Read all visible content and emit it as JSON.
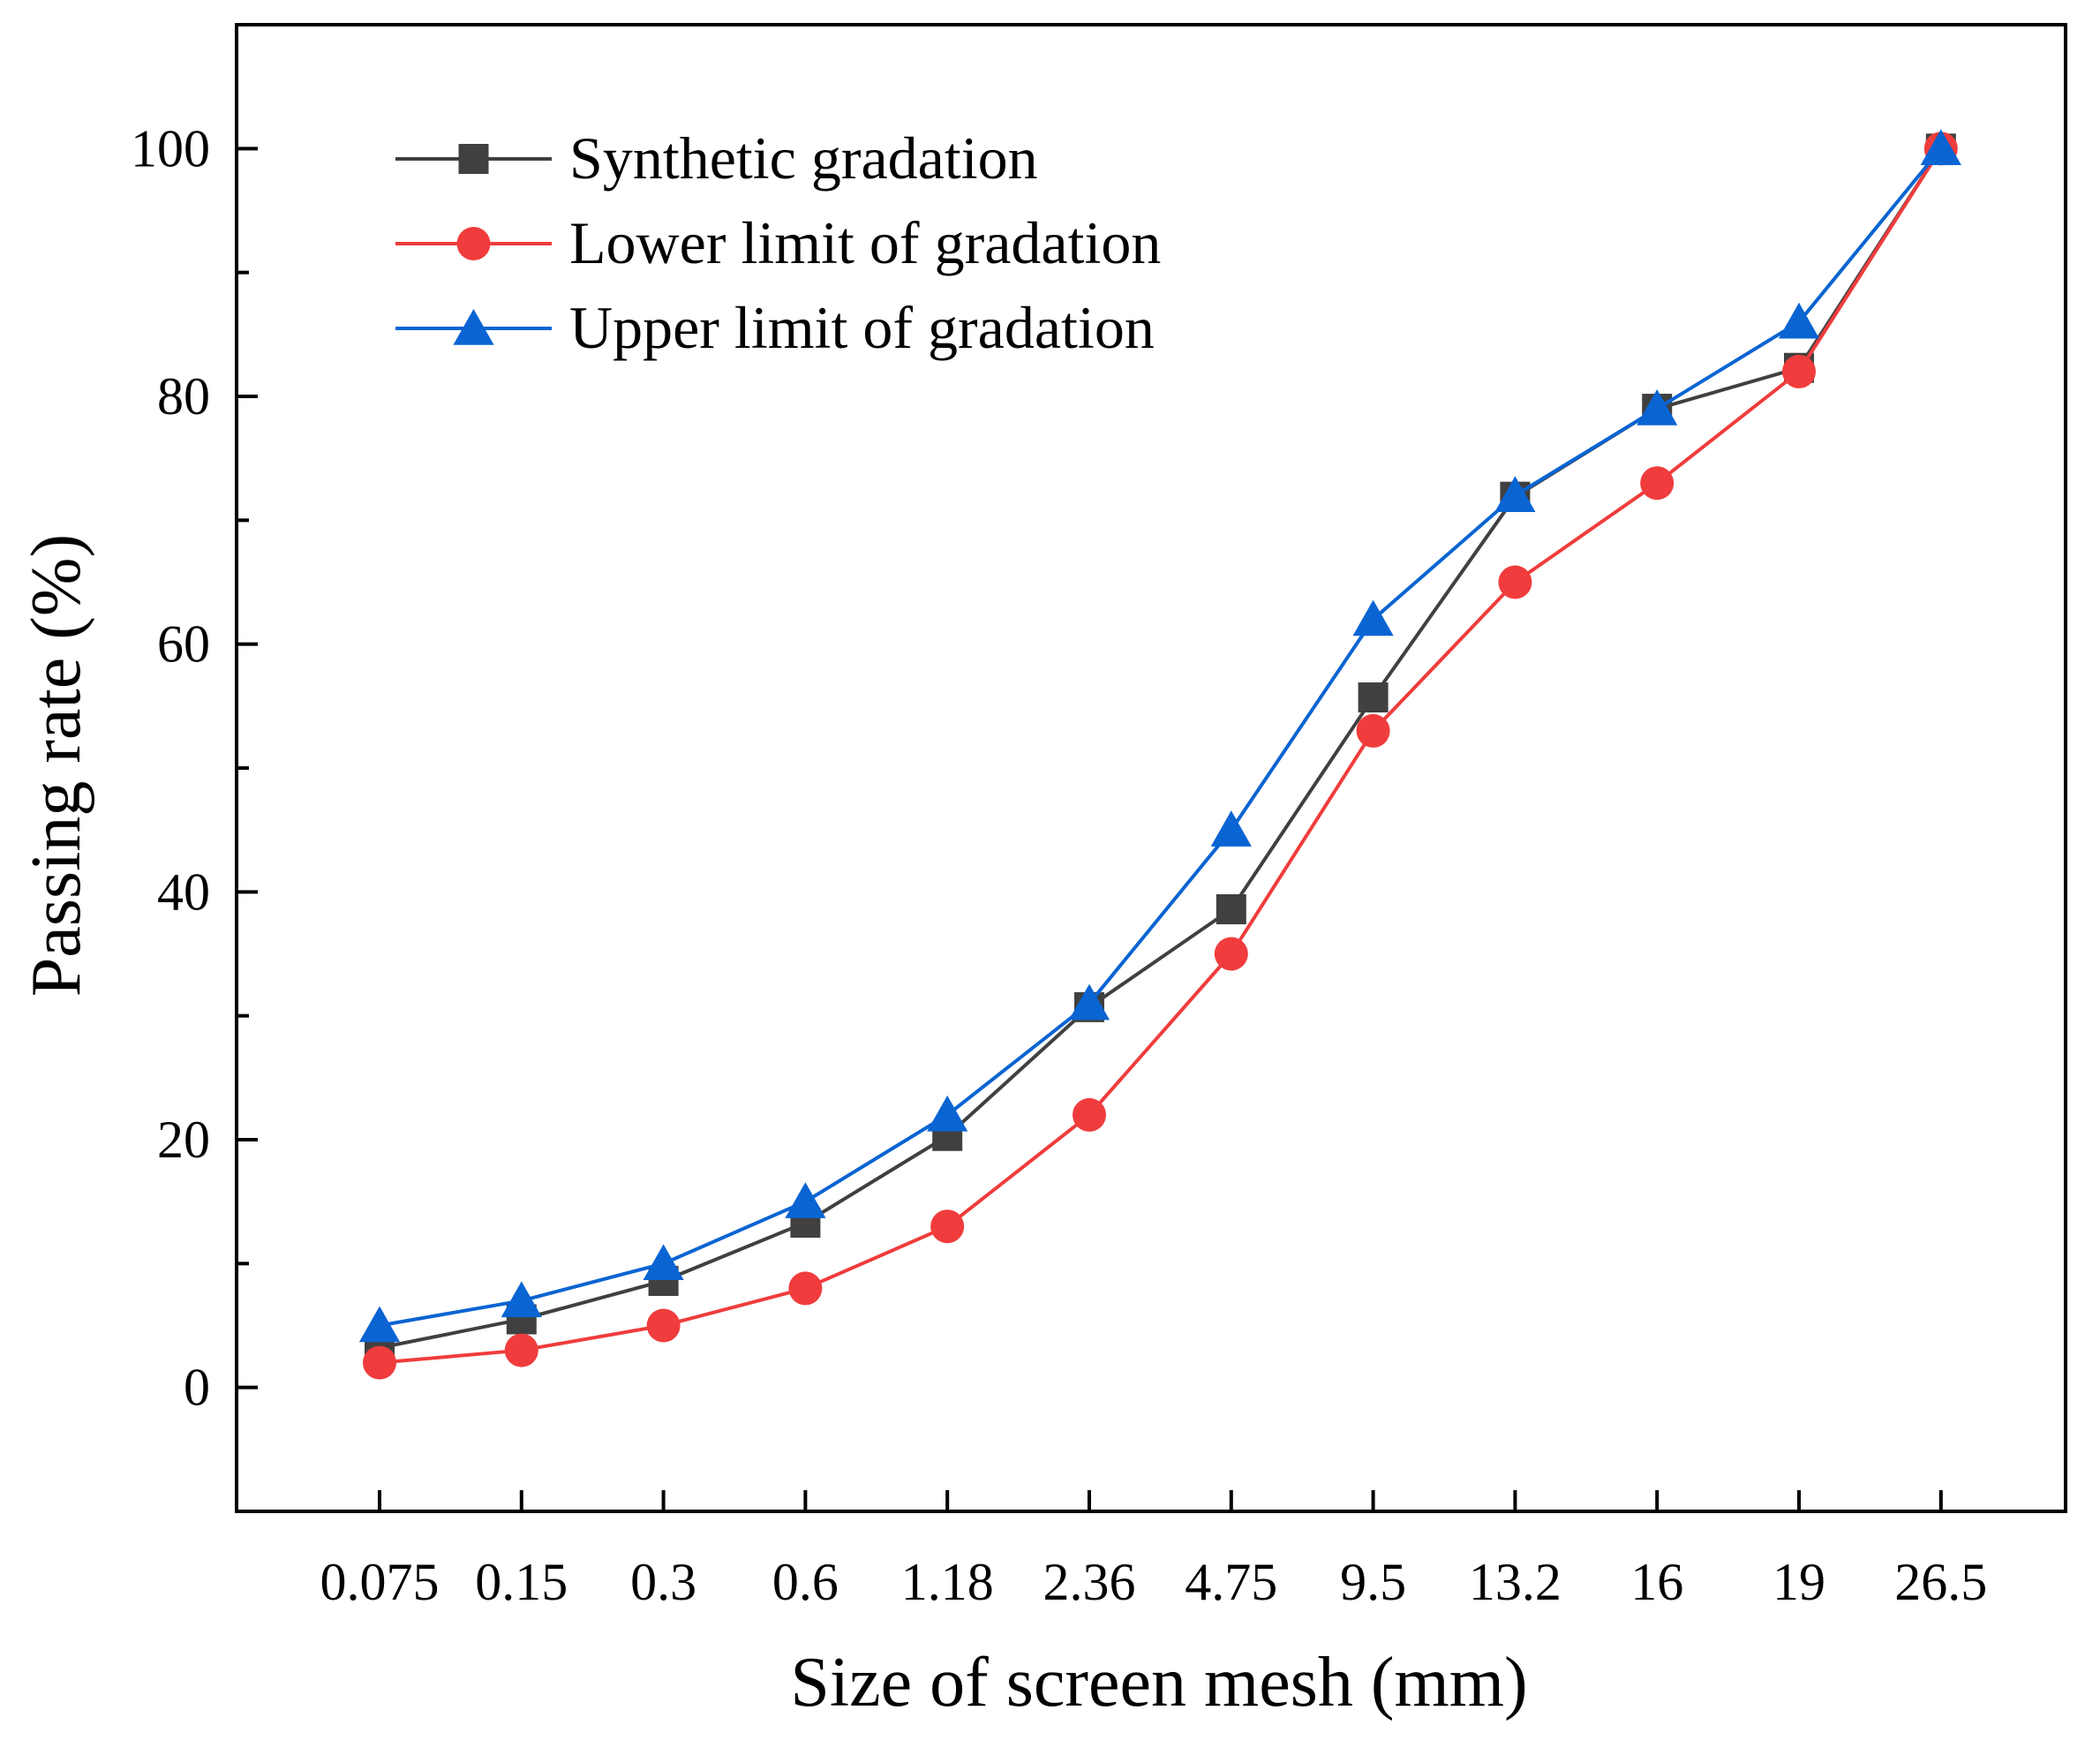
{
  "chart_data": {
    "type": "line",
    "title": "",
    "xlabel": "Size of screen mesh (mm)",
    "ylabel": "Passing rate (%)",
    "categories": [
      "0.075",
      "0.15",
      "0.3",
      "0.6",
      "1.18",
      "2.36",
      "4.75",
      "9.5",
      "13.2",
      "16",
      "19",
      "26.5"
    ],
    "ylim": [
      -10,
      110
    ],
    "yticks": [
      0,
      20,
      40,
      60,
      80,
      100
    ],
    "yticks_labels": [
      "0",
      "20",
      "40",
      "60",
      "80",
      "100"
    ],
    "legend_position": "top-left",
    "series": [
      {
        "name": "Synthetic gradation",
        "marker": "square",
        "color": "#404040",
        "values": [
          3.2,
          5.5,
          8.6,
          13.3,
          20.3,
          30.7,
          38.6,
          55.7,
          71.9,
          79.0,
          82.3,
          100
        ]
      },
      {
        "name": "Lower limit of gradation",
        "marker": "circle",
        "color": "#f03c3c",
        "values": [
          2,
          3,
          5,
          8,
          13,
          22,
          35,
          53,
          65,
          73,
          82,
          100
        ]
      },
      {
        "name": "Upper limit of gradation",
        "marker": "triangle",
        "color": "#0a64d2",
        "values": [
          5,
          7,
          10,
          15,
          22,
          31,
          45,
          62,
          72,
          79,
          86,
          100
        ]
      }
    ]
  }
}
